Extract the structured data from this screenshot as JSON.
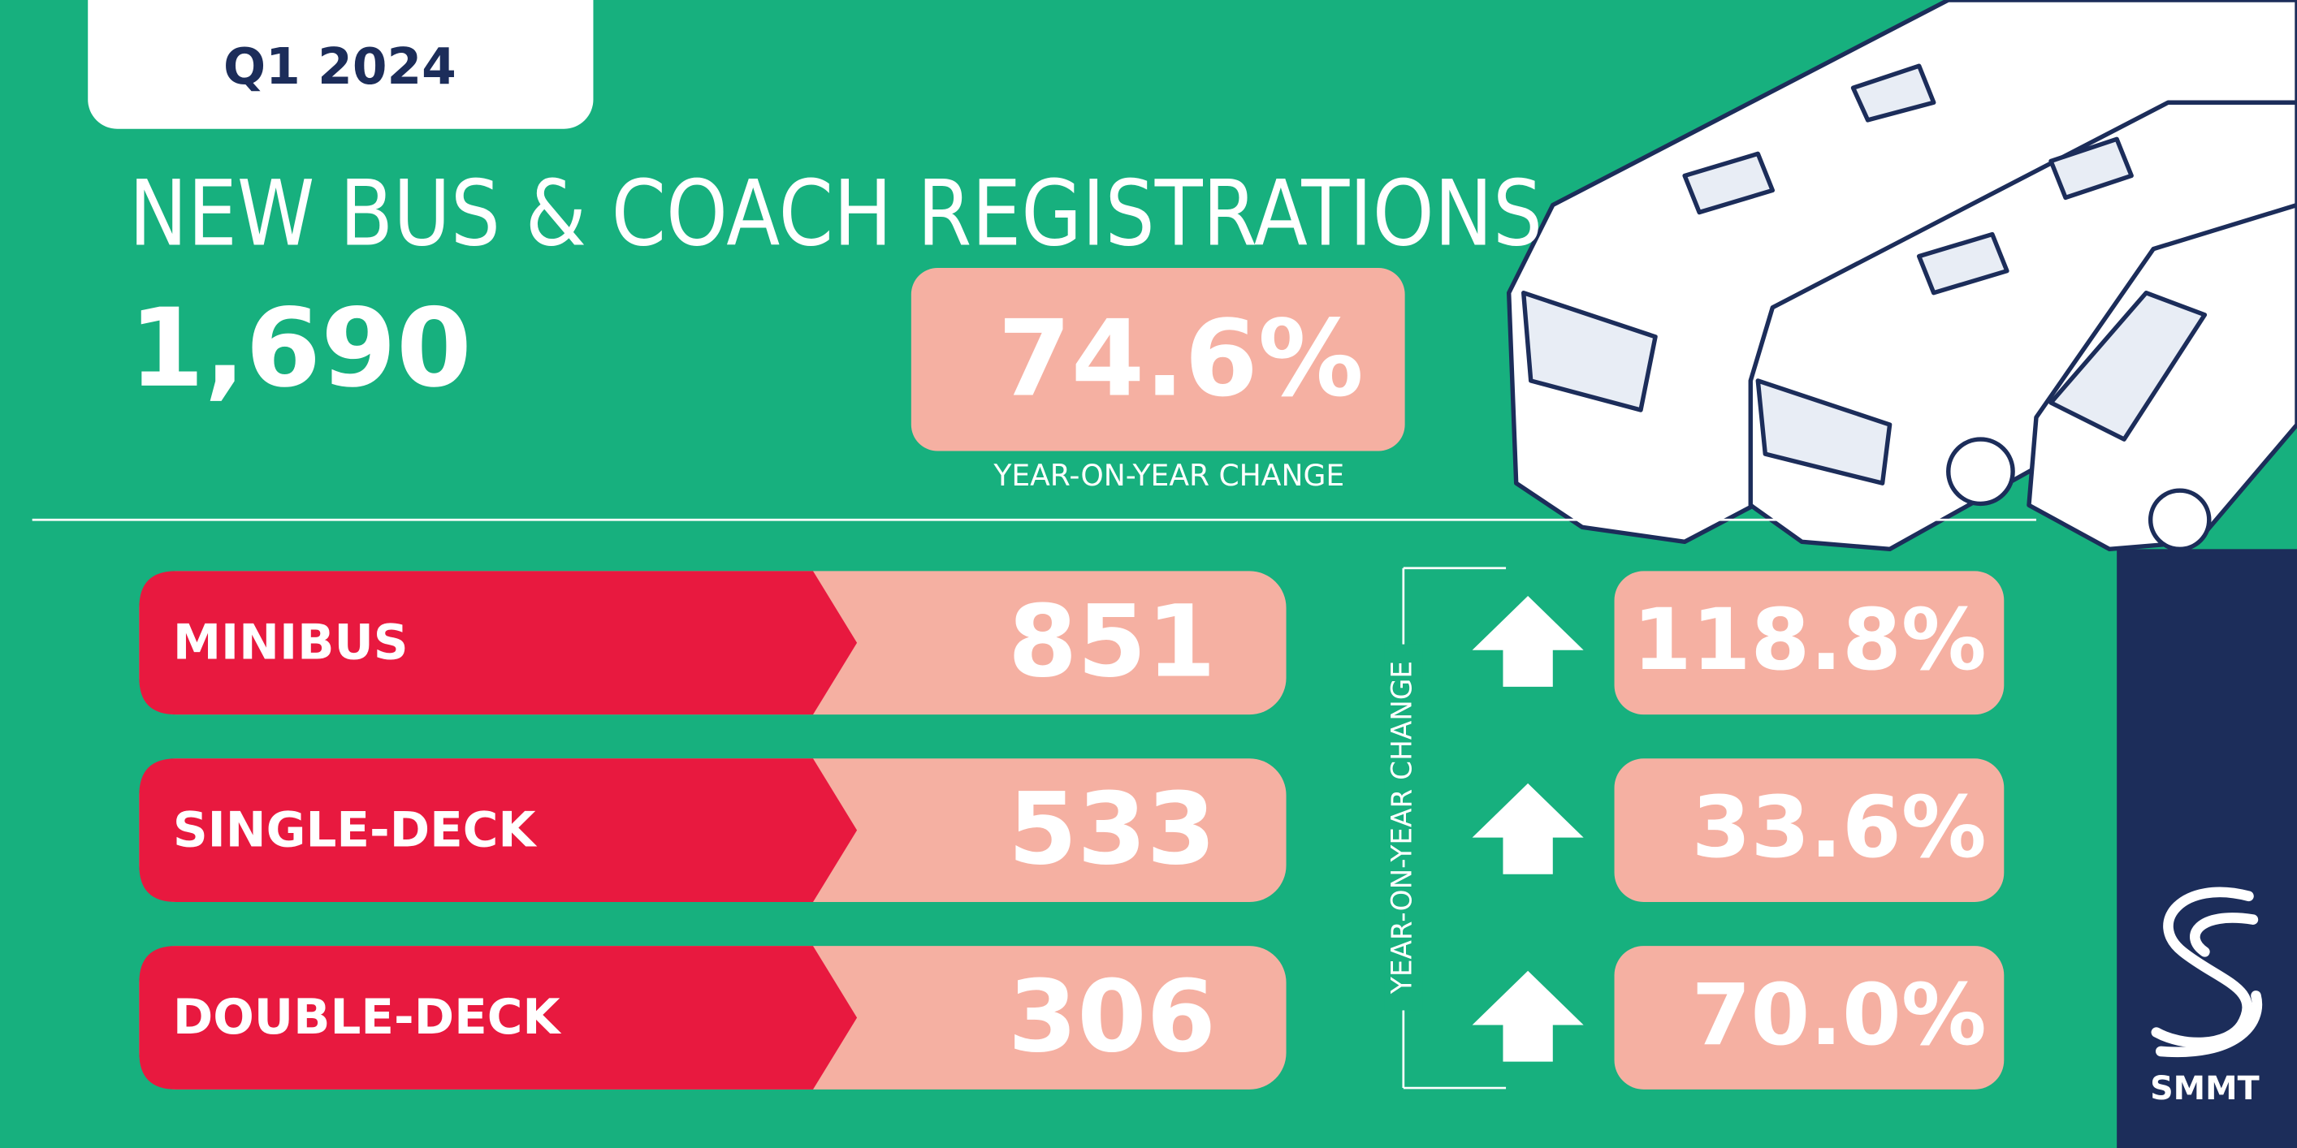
{
  "badge": "Q1 2024",
  "title": "NEW BUS & COACH REGISTRATIONS",
  "total": "1,690",
  "total_change": "74.6%",
  "total_change_label": "YEAR-ON-YEAR CHANGE",
  "rows": [
    {
      "label": "MINIBUS",
      "value": "851",
      "change": "118.8%"
    },
    {
      "label": "SINGLE-DECK",
      "value": "533",
      "change": "33.6%"
    },
    {
      "label": "DOUBLE-DECK",
      "value": "306",
      "change": "70.0%"
    }
  ],
  "rows_change_label": "YEAR-ON-YEAR CHANGE",
  "logo": "SMMT"
}
